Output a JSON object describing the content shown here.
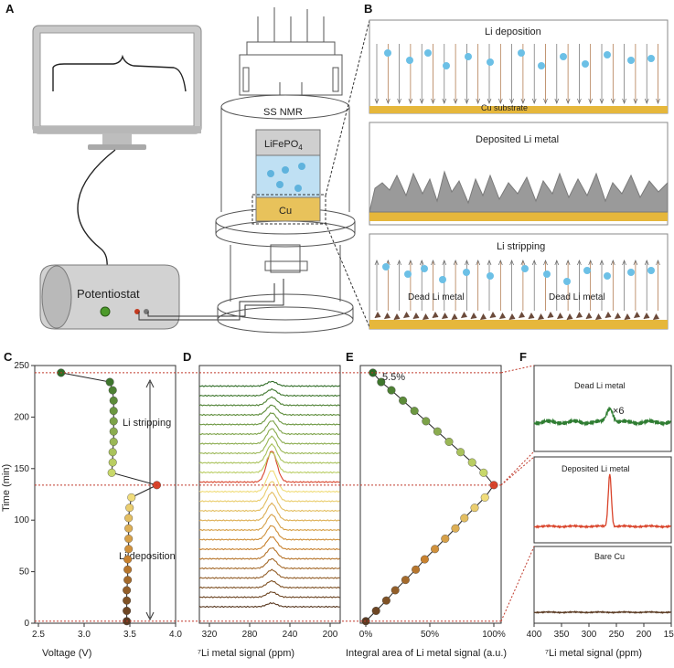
{
  "panels": {
    "A": "A",
    "B": "B",
    "C": "C",
    "D": "D",
    "E": "E",
    "F": "F"
  },
  "schematic": {
    "potentiostat": "Potentiostat",
    "ss_nmr": "SS NMR",
    "cathode": "LiFePO",
    "cathode_sub": "4",
    "anode": "Cu"
  },
  "process": {
    "deposition_title": "Li deposition",
    "substrate": "Cu substrate",
    "deposited_title": "Deposited Li metal",
    "stripping_title": "Li stripping",
    "dead_left": "Dead Li metal",
    "dead_right": "Dead Li metal"
  },
  "colors": {
    "green": "#2f7d32",
    "red": "#d9442b",
    "brown": "#5a3a22",
    "gold": "#e3b24a",
    "blue": "#5fb3dd",
    "guide": "#c0392b"
  },
  "chart_data": [
    {
      "type": "scatter",
      "panel": "C",
      "xlabel": "Voltage (V)",
      "ylabel": "Time (min)",
      "xlim": [
        2.5,
        4.0
      ],
      "ylim": [
        0,
        250
      ],
      "xticks": [
        "2.5",
        "3.0",
        "3.5",
        "4.0"
      ],
      "yticks": [
        "0",
        "50",
        "100",
        "150",
        "200",
        "250"
      ],
      "annot_strip": "Li stripping",
      "annot_dep": "Li deposition",
      "points": [
        {
          "x": 3.48,
          "y": 2
        },
        {
          "x": 3.48,
          "y": 12
        },
        {
          "x": 3.48,
          "y": 22
        },
        {
          "x": 3.48,
          "y": 32
        },
        {
          "x": 3.49,
          "y": 42
        },
        {
          "x": 3.49,
          "y": 52
        },
        {
          "x": 3.49,
          "y": 62
        },
        {
          "x": 3.5,
          "y": 72
        },
        {
          "x": 3.5,
          "y": 82
        },
        {
          "x": 3.5,
          "y": 92
        },
        {
          "x": 3.5,
          "y": 102
        },
        {
          "x": 3.51,
          "y": 112
        },
        {
          "x": 3.53,
          "y": 122
        },
        {
          "x": 3.8,
          "y": 134
        },
        {
          "x": 3.32,
          "y": 146
        },
        {
          "x": 3.33,
          "y": 156
        },
        {
          "x": 3.33,
          "y": 166
        },
        {
          "x": 3.34,
          "y": 176
        },
        {
          "x": 3.34,
          "y": 186
        },
        {
          "x": 3.34,
          "y": 196
        },
        {
          "x": 3.34,
          "y": 206
        },
        {
          "x": 3.34,
          "y": 216
        },
        {
          "x": 3.33,
          "y": 226
        },
        {
          "x": 3.3,
          "y": 234
        },
        {
          "x": 2.78,
          "y": 243
        }
      ]
    },
    {
      "type": "line",
      "panel": "D",
      "xlabel": "⁷Li metal signal (ppm)",
      "xlim": [
        330,
        190
      ],
      "xticks": [
        "320",
        "280",
        "240",
        "200"
      ],
      "peak_ppm": 258,
      "stacked_spectra": 24,
      "highlight_index": 13
    },
    {
      "type": "scatter",
      "panel": "E",
      "xlabel": "Integral area of Li metal signal (a.u.)",
      "xlim": [
        0,
        100
      ],
      "xticks": [
        "0%",
        "50%",
        "100%"
      ],
      "ylim": [
        0,
        250
      ],
      "annotation": "5.5%",
      "points": [
        {
          "x": 0,
          "y": 2
        },
        {
          "x": 8,
          "y": 12
        },
        {
          "x": 16,
          "y": 22
        },
        {
          "x": 23,
          "y": 32
        },
        {
          "x": 31,
          "y": 42
        },
        {
          "x": 39,
          "y": 52
        },
        {
          "x": 46,
          "y": 62
        },
        {
          "x": 54,
          "y": 72
        },
        {
          "x": 62,
          "y": 82
        },
        {
          "x": 70,
          "y": 92
        },
        {
          "x": 77,
          "y": 102
        },
        {
          "x": 85,
          "y": 112
        },
        {
          "x": 93,
          "y": 122
        },
        {
          "x": 100,
          "y": 134
        },
        {
          "x": 92,
          "y": 146
        },
        {
          "x": 83,
          "y": 156
        },
        {
          "x": 74,
          "y": 166
        },
        {
          "x": 65,
          "y": 176
        },
        {
          "x": 56,
          "y": 186
        },
        {
          "x": 47,
          "y": 196
        },
        {
          "x": 38,
          "y": 206
        },
        {
          "x": 29,
          "y": 216
        },
        {
          "x": 20,
          "y": 226
        },
        {
          "x": 12,
          "y": 234
        },
        {
          "x": 5.5,
          "y": 243
        }
      ]
    },
    {
      "type": "line",
      "panel": "F",
      "xlabel": "⁷Li metal signal (ppm)",
      "xlim": [
        400,
        150
      ],
      "xticks": [
        "400",
        "350",
        "300",
        "250",
        "200",
        "150"
      ],
      "subpanels": [
        {
          "title": "Dead Li metal",
          "scale": "×6",
          "color": "#2f7d32"
        },
        {
          "title": "Deposited Li metal",
          "color": "#d9442b"
        },
        {
          "title": "Bare Cu",
          "color": "#5a3a22"
        }
      ]
    }
  ]
}
